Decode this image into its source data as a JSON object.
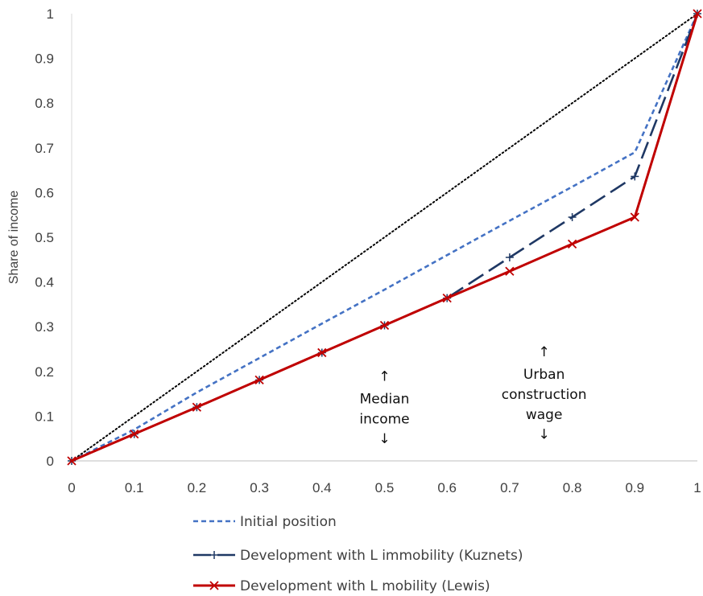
{
  "chart_data": {
    "type": "line",
    "title": "",
    "xlabel": "",
    "ylabel": "Share of income",
    "xlim": [
      0,
      1
    ],
    "ylim": [
      0,
      1
    ],
    "x_ticks": [
      "0",
      "0.1",
      "0.2",
      "0.3",
      "0.4",
      "0.5",
      "0.6",
      "0.7",
      "0.8",
      "0.9",
      "1"
    ],
    "y_ticks": [
      "0",
      "0.1",
      "0.2",
      "0.3",
      "0.4",
      "0.5",
      "0.6",
      "0.7",
      "0.8",
      "0.9",
      "1"
    ],
    "grid": false,
    "legend_position": "bottom",
    "equality_line": {
      "x": [
        0,
        1
      ],
      "y": [
        0,
        1
      ],
      "color": "#000000"
    },
    "series": [
      {
        "name": "Initial position",
        "color": "#4472C4",
        "marker": "none",
        "style": "dashed",
        "x": [
          0,
          0.1,
          0.2,
          0.3,
          0.4,
          0.5,
          0.6,
          0.7,
          0.8,
          0.9,
          1
        ],
        "y": [
          0,
          0.07,
          0.153,
          0.23,
          0.307,
          0.383,
          0.46,
          0.537,
          0.613,
          0.69,
          1
        ]
      },
      {
        "name": "Development with L immobility (Kuznets)",
        "color": "#1F3864",
        "marker": "plus",
        "style": "longdash",
        "x": [
          0,
          0.1,
          0.2,
          0.3,
          0.4,
          0.5,
          0.6,
          0.7,
          0.8,
          0.9,
          1
        ],
        "y": [
          0,
          0.06,
          0.12,
          0.181,
          0.242,
          0.303,
          0.364,
          0.455,
          0.545,
          0.636,
          1
        ]
      },
      {
        "name": "Development with L mobility (Lewis)",
        "color": "#C00000",
        "marker": "x",
        "style": "solid",
        "x": [
          0,
          0.1,
          0.2,
          0.3,
          0.4,
          0.5,
          0.6,
          0.7,
          0.8,
          0.9,
          1
        ],
        "y": [
          0,
          0.06,
          0.12,
          0.181,
          0.242,
          0.303,
          0.364,
          0.424,
          0.485,
          0.545,
          1
        ]
      }
    ],
    "annotations": [
      {
        "lines": [
          "Median",
          "income"
        ],
        "x": 0.5,
        "y_top_arrow": 0.19,
        "y_bottom_arrow": 0.05
      },
      {
        "lines": [
          "Urban",
          "construction",
          "wage"
        ],
        "x": 0.755,
        "y_top_arrow": 0.245,
        "y_bottom_arrow": 0.06
      }
    ],
    "arrow_up": "↑",
    "arrow_down": "↓"
  }
}
